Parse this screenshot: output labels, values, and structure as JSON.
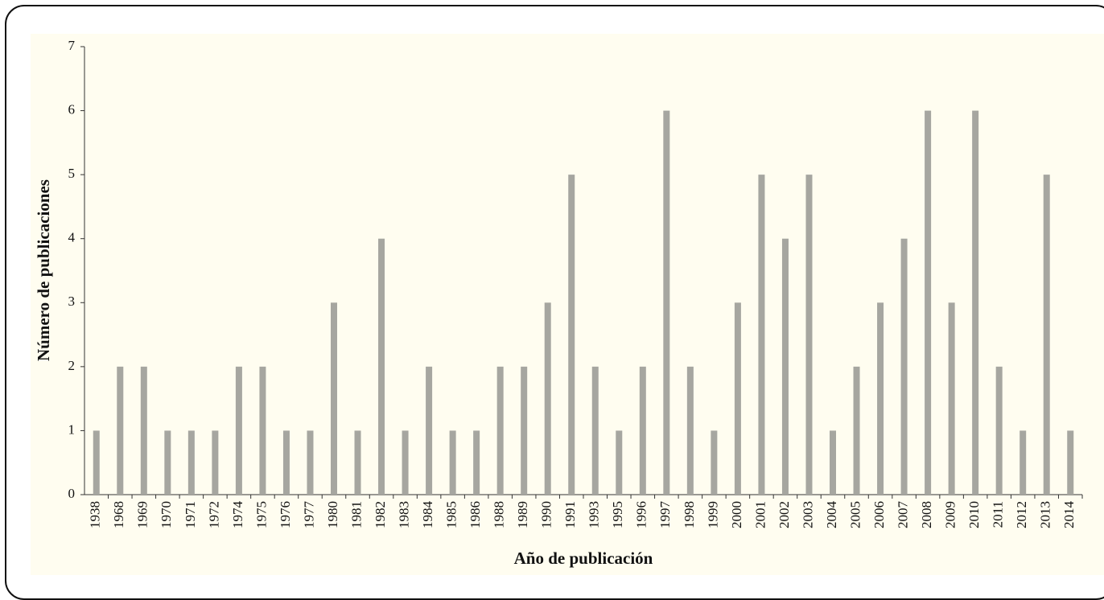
{
  "chart_data": {
    "type": "bar",
    "x_label": "Año de publicación",
    "y_label": "Número de publicaciones",
    "categories": [
      "1938",
      "1968",
      "1969",
      "1970",
      "1971",
      "1972",
      "1974",
      "1975",
      "1976",
      "1977",
      "1980",
      "1981",
      "1982",
      "1983",
      "1984",
      "1985",
      "1986",
      "1988",
      "1989",
      "1990",
      "1991",
      "1993",
      "1995",
      "1996",
      "1997",
      "1998",
      "1999",
      "2000",
      "2001",
      "2002",
      "2003",
      "2004",
      "2005",
      "2006",
      "2007",
      "2008",
      "2009",
      "2010",
      "2011",
      "2012",
      "2013",
      "2014"
    ],
    "values": [
      1,
      2,
      2,
      1,
      1,
      1,
      2,
      2,
      1,
      1,
      3,
      1,
      4,
      1,
      2,
      1,
      1,
      2,
      2,
      3,
      5,
      2,
      1,
      2,
      6,
      2,
      1,
      3,
      5,
      4,
      5,
      1,
      2,
      3,
      4,
      6,
      3,
      6,
      2,
      1,
      5,
      1
    ],
    "color": "#a6a6a0",
    "ylim": [
      0,
      7
    ],
    "yticks": [
      0,
      1,
      2,
      3,
      4,
      5,
      6,
      7
    ],
    "grid": false
  }
}
